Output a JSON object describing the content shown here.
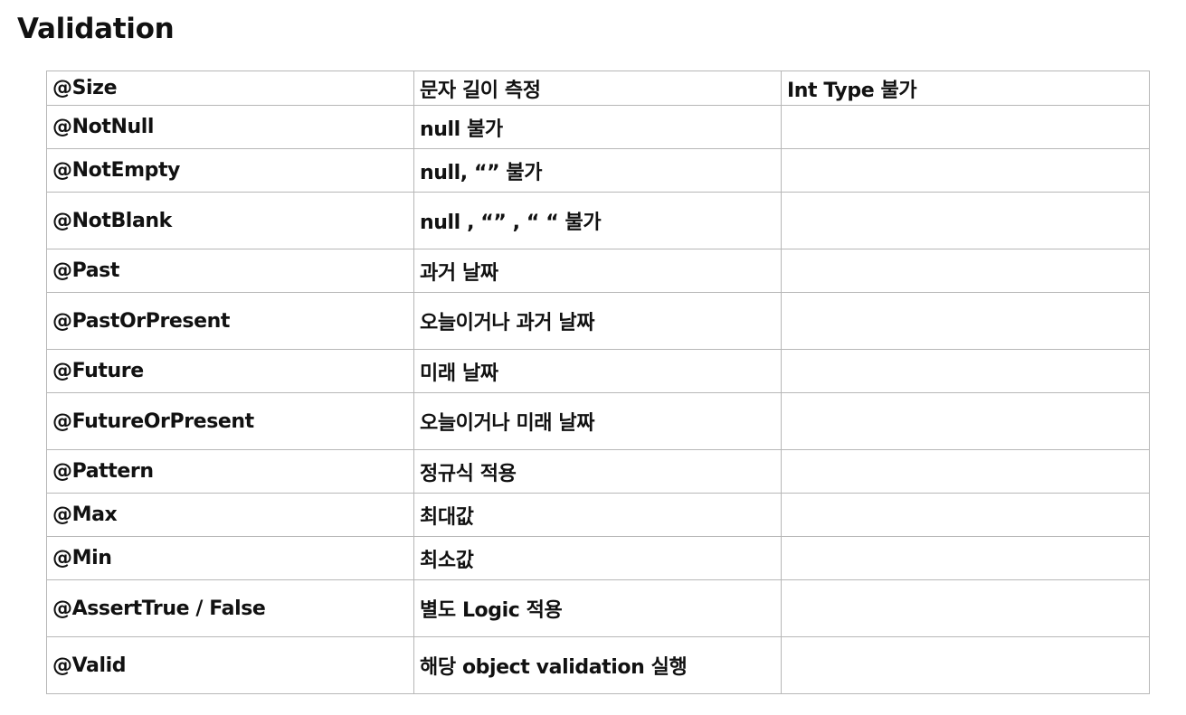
{
  "title": "Validation",
  "rows": [
    {
      "annotation": "@Size",
      "description": "문자 길이 측정",
      "note": "Int Type 불가"
    },
    {
      "annotation": "@NotNull",
      "description": "null 불가",
      "note": ""
    },
    {
      "annotation": "@NotEmpty",
      "description": "null, “” 불가",
      "note": ""
    },
    {
      "annotation": "@NotBlank",
      "description": "null , “” , “ “ 불가",
      "note": ""
    },
    {
      "annotation": "@Past",
      "description": "과거 날짜",
      "note": ""
    },
    {
      "annotation": "@PastOrPresent",
      "description": "오늘이거나 과거 날짜",
      "note": ""
    },
    {
      "annotation": "@Future",
      "description": "미래 날짜",
      "note": ""
    },
    {
      "annotation": "@FutureOrPresent",
      "description": "오늘이거나 미래 날짜",
      "note": ""
    },
    {
      "annotation": "@Pattern",
      "description": "정규식 적용",
      "note": ""
    },
    {
      "annotation": "@Max",
      "description": "최대값",
      "note": ""
    },
    {
      "annotation": "@Min",
      "description": "최소값",
      "note": ""
    },
    {
      "annotation": "@AssertTrue / False",
      "description": "별도 Logic 적용",
      "note": ""
    },
    {
      "annotation": "@Valid",
      "description": "해당 object  validation 실행",
      "note": ""
    }
  ]
}
